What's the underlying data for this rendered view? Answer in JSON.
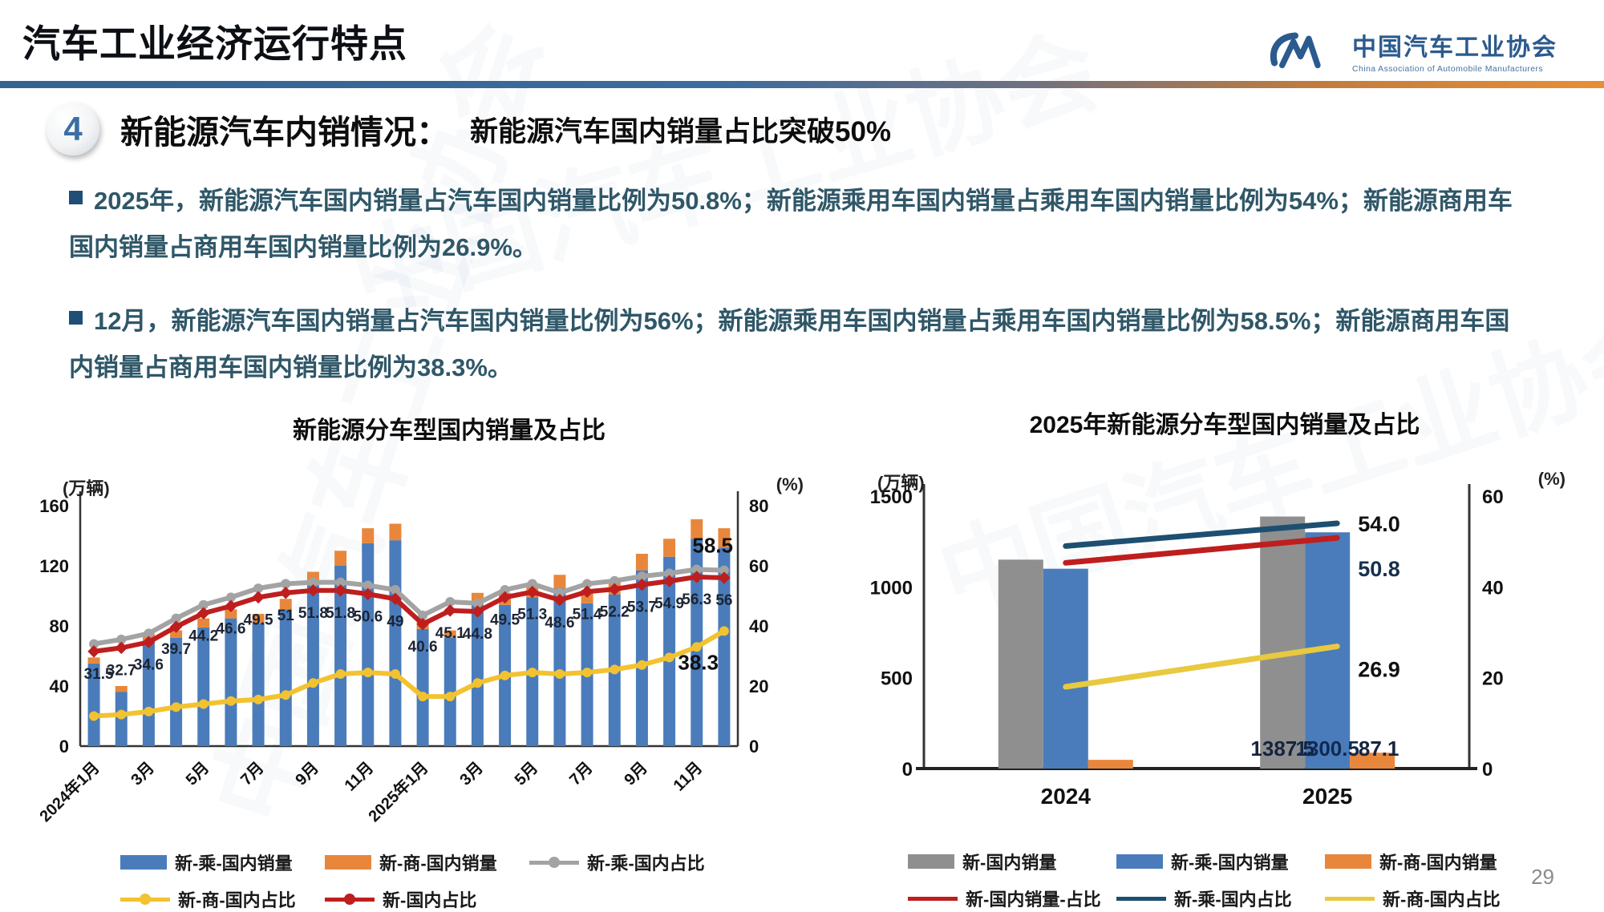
{
  "page": {
    "watermark_text": "中国汽车工业协会",
    "page_number": "29"
  },
  "header": {
    "title": "汽车工业经济运行特点",
    "logo": {
      "org_cn": "中国汽车工业协会",
      "org_en": "China Association of Automobile Manufacturers"
    }
  },
  "section": {
    "number": "4",
    "title": "新能源汽车内销情况：",
    "subtitle": "新能源汽车国内销量占比突破50%"
  },
  "bullets": [
    "2025年，新能源汽车国内销量占汽车国内销量比例为50.8%；新能源乘用车国内销量占乘用车国内销量比例为54%；新能源商用车国内销量占商用车国内销量比例为26.9%。",
    "12月，新能源汽车国内销量占汽车国内销量比例为56%；新能源乘用车国内销量占乘用车国内销量比例为58.5%；新能源商用车国内销量占商用车国内销量比例为38.3%。"
  ],
  "chart_data": [
    {
      "type": "bar",
      "subtype": "stacked bars + 3 share lines, dual axis",
      "title": "新能源分车型国内销量及占比",
      "left_axis": {
        "caption": "(万辆)",
        "min": 0,
        "max": 160,
        "ticks": [
          0,
          40,
          80,
          120,
          160
        ]
      },
      "right_axis": {
        "caption": "(%)",
        "min": 0,
        "max": 80,
        "ticks": [
          0,
          20,
          40,
          60,
          80
        ]
      },
      "x_tick_labels": [
        "2024年1月",
        "3月",
        "5月",
        "7月",
        "9月",
        "11月",
        "2025年1月",
        "3月",
        "5月",
        "7月",
        "9月",
        "11月"
      ],
      "bar_series": [
        {
          "name": "新-乘-国内销量",
          "color": "#4a7cbb",
          "values": [
            55,
            36,
            70,
            72,
            79,
            85,
            82,
            91,
            107,
            120,
            135,
            137,
            78,
            72,
            94,
            94,
            99,
            105,
            95,
            101,
            117,
            126,
            138,
            132
          ]
        },
        {
          "name": "新-商-国内销量",
          "color": "#e8873b",
          "values": [
            4,
            4,
            5,
            5,
            6,
            6,
            6,
            7,
            9,
            10,
            10,
            11,
            5,
            5,
            8,
            8,
            9,
            9,
            9,
            10,
            11,
            12,
            13,
            13
          ]
        }
      ],
      "line_series": [
        {
          "name": "新-乘-国内占比",
          "color": "#a3a3a3",
          "axis": "right",
          "values": [
            34,
            35.5,
            37.5,
            42.5,
            47,
            49.5,
            52.5,
            54,
            54.5,
            54.5,
            53.5,
            52,
            43.5,
            48,
            47.5,
            52,
            54,
            51,
            54,
            55,
            56.5,
            57.5,
            58.8,
            58.5
          ],
          "end_label": "58.5"
        },
        {
          "name": "新-商-国内占比",
          "color": "#f2c230",
          "axis": "right",
          "values": [
            10,
            10.5,
            11.5,
            13,
            14,
            15,
            15.5,
            17,
            21,
            24,
            24.5,
            24,
            16.5,
            16.5,
            21,
            23.5,
            24.5,
            24,
            24.5,
            25.5,
            27,
            29.5,
            33,
            38.3
          ],
          "end_label": "38.3"
        },
        {
          "name": "新-国内占比",
          "color": "#bf1e1e",
          "axis": "right",
          "values": [
            31.5,
            32.7,
            34.6,
            39.7,
            44.2,
            46.6,
            49.5,
            51,
            51.8,
            51.8,
            50.6,
            49,
            40.6,
            45.1,
            44.8,
            49.5,
            51.3,
            48.6,
            51.4,
            52.2,
            53.7,
            54.9,
            56.3,
            56
          ],
          "point_labels": [
            "31.5",
            "32.7",
            "34.6",
            "39.7",
            "44.2",
            "46.6",
            "49.5",
            "51",
            "51.8",
            "51.8",
            "50.6",
            "49",
            "40.6",
            "45.1",
            "44.8",
            "49.5",
            "51.3",
            "48.6",
            "51.4",
            "52.2",
            "53.7",
            "54.9",
            "56.3",
            "56"
          ]
        }
      ],
      "legend_rows": [
        [
          {
            "label": "新-乘-国内销量",
            "type": "bar",
            "color": "#4a7cbb"
          },
          {
            "label": "新-商-国内销量",
            "type": "bar",
            "color": "#e8873b"
          },
          {
            "label": "新-乘-国内占比",
            "type": "line-dot",
            "color": "#a3a3a3"
          }
        ],
        [
          {
            "label": "新-商-国内占比",
            "type": "line-dot",
            "color": "#f2c230"
          },
          {
            "label": "新-国内占比",
            "type": "line-dot",
            "color": "#bf1e1e"
          }
        ]
      ]
    },
    {
      "type": "bar",
      "subtype": "grouped bars + 3 share lines, dual axis",
      "title": "2025年新能源分车型国内销量及占比",
      "left_axis": {
        "caption": "(万辆)",
        "min": 0,
        "max": 1500,
        "ticks": [
          0,
          500,
          1000,
          1500
        ]
      },
      "right_axis": {
        "caption": "(%)",
        "min": 0,
        "max": 60,
        "ticks": [
          0,
          20,
          40,
          60
        ]
      },
      "categories": [
        "2024",
        "2025"
      ],
      "bar_series": [
        {
          "name": "新-国内销量",
          "color": "#8f8f8f",
          "values": [
            1150,
            1387.5
          ],
          "labels": [
            "",
            "1387.5"
          ]
        },
        {
          "name": "新-乘-国内销量",
          "color": "#4a7cbb",
          "values": [
            1100,
            1300.5
          ],
          "labels": [
            "",
            "1300.5"
          ]
        },
        {
          "name": "新-商-国内销量",
          "color": "#e8873b",
          "values": [
            48,
            87.1
          ],
          "labels": [
            "",
            "87.1"
          ]
        }
      ],
      "line_series": [
        {
          "name": "新-国内销量-占比",
          "color": "#bf1e1e",
          "values": [
            45.3,
            50.8
          ],
          "end_label": "50.8"
        },
        {
          "name": "新-乘-国内占比",
          "color": "#1d4f70",
          "values": [
            49,
            54
          ],
          "end_label": "54.0"
        },
        {
          "name": "新-商-国内占比",
          "color": "#e8c93f",
          "values": [
            18,
            26.9
          ],
          "end_label": "26.9"
        }
      ],
      "legend_rows": [
        [
          {
            "label": "新-国内销量",
            "type": "bar",
            "color": "#8f8f8f"
          },
          {
            "label": "新-乘-国内销量",
            "type": "bar",
            "color": "#4a7cbb"
          },
          {
            "label": "新-商-国内销量",
            "type": "bar",
            "color": "#e8873b"
          }
        ],
        [
          {
            "label": "新-国内销量-占比",
            "type": "line",
            "color": "#bf1e1e"
          },
          {
            "label": "新-乘-国内占比",
            "type": "line",
            "color": "#1d4f70"
          },
          {
            "label": "新-商-国内占比",
            "type": "line",
            "color": "#e8c93f"
          }
        ]
      ]
    }
  ]
}
